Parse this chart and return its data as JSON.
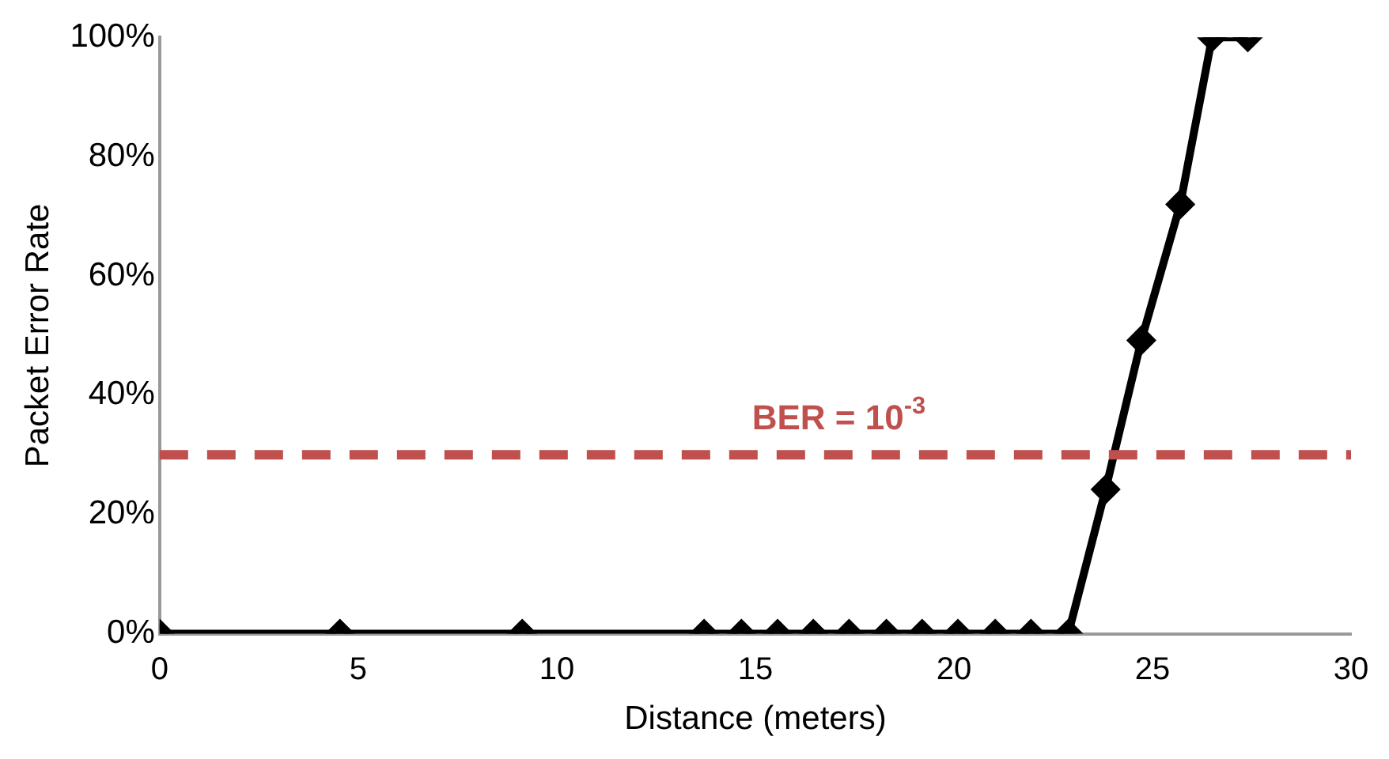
{
  "chart_data": {
    "type": "line",
    "xlabel": "Distance (meters)",
    "ylabel": "Packet Error Rate",
    "x": [
      0,
      4.54,
      9.13,
      13.71,
      14.65,
      15.56,
      16.46,
      17.36,
      18.3,
      19.2,
      20.1,
      21.04,
      21.94,
      22.88,
      23.82,
      24.72,
      25.7,
      26.5,
      27.4
    ],
    "series": [
      {
        "color": "#000000",
        "values": [
          0,
          0,
          0,
          0,
          0,
          0,
          0,
          0,
          0,
          0,
          0,
          0,
          0,
          0,
          24.2,
          49.2,
          72,
          100,
          100
        ]
      }
    ],
    "xlim": [
      0,
      30
    ],
    "xticks": [
      0,
      5,
      10,
      15,
      20,
      25,
      30
    ],
    "ylim": [
      0,
      100
    ],
    "yticks": [
      {
        "value": 0,
        "label": "0%"
      },
      {
        "value": 20,
        "label": "20%"
      },
      {
        "value": 40,
        "label": "40%"
      },
      {
        "value": 60,
        "label": "60%"
      },
      {
        "value": 80,
        "label": "80%"
      },
      {
        "value": 100,
        "label": "100%"
      }
    ],
    "ref_lines": [
      {
        "axis": "y",
        "value": 30,
        "color": "#c0504d",
        "line_style": "dashed"
      }
    ],
    "annotations": [
      "BER = 10$^{-3}$"
    ],
    "grid": false,
    "legend": false,
    "marker": "diamond",
    "line_style": "solid"
  }
}
